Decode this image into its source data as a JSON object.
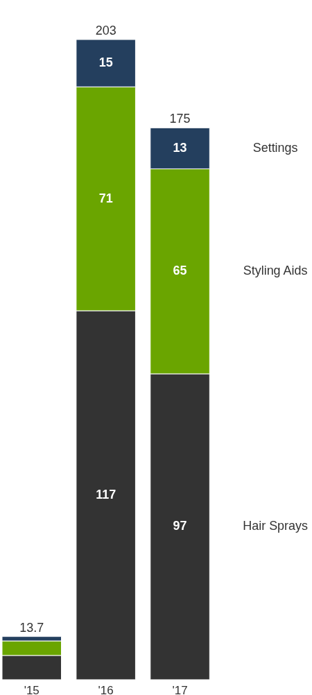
{
  "chart_data": {
    "type": "bar",
    "stacked": true,
    "categories": [
      "'15",
      "'16",
      "'17"
    ],
    "series": [
      {
        "name": "Hair Sprays",
        "color": "#333333",
        "values": [
          7.7,
          117,
          97
        ],
        "value_labels": [
          null,
          "117",
          "97"
        ]
      },
      {
        "name": "Styling Aids",
        "color": "#6aa500",
        "values": [
          4.6,
          71,
          65
        ],
        "value_labels": [
          null,
          "71",
          "65"
        ]
      },
      {
        "name": "Settings",
        "color": "#243f5e",
        "values": [
          1.4,
          15,
          13
        ],
        "value_labels": [
          null,
          "15",
          "13"
        ]
      }
    ],
    "totals": [
      "13.7",
      "203",
      "175"
    ]
  }
}
